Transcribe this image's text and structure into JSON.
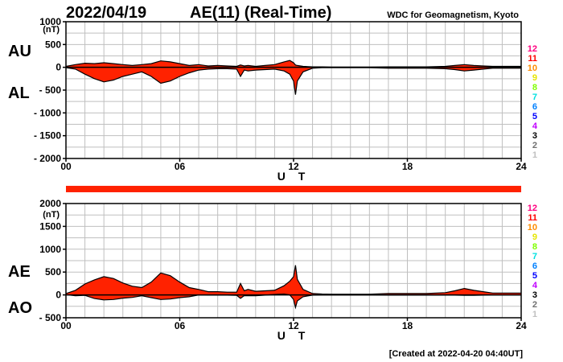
{
  "header": {
    "date": "2022/04/19",
    "title": "AE(11) (Real-Time)",
    "source": "WDC for Geomagnetism, Kyoto",
    "created": "[Created at 2022-04-20 04:40UT]"
  },
  "colors": {
    "fill": "#ff2200",
    "line": "#000000",
    "grid": "#bfbfbf",
    "availability_bar": "#ff2200"
  },
  "station_count": {
    "labels": [
      "12",
      "11",
      "10",
      "9",
      "8",
      "7",
      "6",
      "5",
      "4",
      "3",
      "2",
      "1"
    ],
    "colors": [
      "#ff0080",
      "#ff0000",
      "#ff8c00",
      "#e6e600",
      "#80ff00",
      "#00e0e0",
      "#0080ff",
      "#0000ff",
      "#c000ff",
      "#000000",
      "#707070",
      "#c0c0c0"
    ]
  },
  "chart_data": [
    {
      "type": "area",
      "name": "AU/AL",
      "series_labels": {
        "upper": "AU",
        "lower": "AL"
      },
      "y_unit": "(nT)",
      "ylim": [
        -2000,
        1000
      ],
      "yticks": [
        1000,
        500,
        0,
        -500,
        -1000,
        -1500,
        -2000
      ],
      "ytick_labels": [
        "1000",
        "500",
        "0",
        "- 500",
        "- 1000",
        "- 1500",
        "- 2000"
      ],
      "xlim": [
        0,
        24
      ],
      "xticks": [
        0,
        6,
        12,
        18,
        24
      ],
      "xtick_labels": [
        "00",
        "06",
        "12",
        "18",
        "24"
      ],
      "xlabel": "U T",
      "x": [
        0,
        0.5,
        1,
        1.5,
        2,
        2.5,
        3,
        3.5,
        4,
        4.5,
        5,
        5.5,
        6,
        6.5,
        7,
        7.5,
        8,
        8.5,
        9,
        9.2,
        9.4,
        9.6,
        10,
        10.5,
        11,
        11.5,
        11.8,
        12,
        12.1,
        12.2,
        12.5,
        13,
        13.5,
        14,
        15,
        16,
        17,
        18,
        19,
        20,
        20.5,
        21,
        21.5,
        22,
        22.5,
        23,
        23.5,
        24
      ],
      "upper": [
        20,
        60,
        90,
        80,
        100,
        80,
        60,
        40,
        60,
        80,
        140,
        120,
        80,
        40,
        60,
        30,
        40,
        30,
        20,
        50,
        30,
        40,
        20,
        40,
        60,
        120,
        150,
        100,
        50,
        40,
        20,
        10,
        10,
        5,
        5,
        5,
        10,
        10,
        10,
        20,
        40,
        60,
        40,
        30,
        20,
        20,
        20,
        20
      ],
      "lower": [
        -10,
        -40,
        -150,
        -250,
        -320,
        -280,
        -200,
        -150,
        -100,
        -200,
        -350,
        -300,
        -200,
        -120,
        -60,
        -40,
        -30,
        -30,
        -40,
        -200,
        -60,
        -80,
        -60,
        -50,
        -40,
        -80,
        -150,
        -300,
        -600,
        -300,
        -100,
        -20,
        -10,
        -10,
        -10,
        -10,
        -20,
        -20,
        -20,
        -30,
        -50,
        -80,
        -60,
        -40,
        -20,
        -20,
        -20,
        -20
      ]
    },
    {
      "type": "area",
      "name": "AE/AO",
      "series_labels": {
        "upper": "AE",
        "lower": "AO"
      },
      "y_unit": "(nT)",
      "ylim": [
        -500,
        2000
      ],
      "yticks": [
        2000,
        1500,
        1000,
        500,
        0,
        -500
      ],
      "ytick_labels": [
        "2000",
        "1500",
        "1000",
        "500",
        "0",
        "- 500"
      ],
      "xlim": [
        0,
        24
      ],
      "xticks": [
        0,
        6,
        12,
        18,
        24
      ],
      "xtick_labels": [
        "00",
        "06",
        "12",
        "18",
        "24"
      ],
      "xlabel": "U T",
      "x": [
        0,
        0.5,
        1,
        1.5,
        2,
        2.5,
        3,
        3.5,
        4,
        4.5,
        5,
        5.5,
        6,
        6.5,
        7,
        7.5,
        8,
        8.5,
        9,
        9.2,
        9.4,
        9.6,
        10,
        10.5,
        11,
        11.5,
        11.8,
        12,
        12.1,
        12.2,
        12.5,
        13,
        13.5,
        14,
        15,
        16,
        17,
        18,
        19,
        20,
        20.5,
        21,
        21.5,
        22,
        22.5,
        23,
        23.5,
        24
      ],
      "upper": [
        30,
        100,
        240,
        330,
        400,
        360,
        260,
        190,
        160,
        280,
        480,
        420,
        280,
        160,
        120,
        70,
        70,
        60,
        60,
        250,
        90,
        120,
        80,
        90,
        100,
        200,
        300,
        400,
        650,
        340,
        120,
        30,
        20,
        15,
        15,
        15,
        30,
        30,
        30,
        50,
        90,
        140,
        100,
        70,
        40,
        40,
        40,
        40
      ],
      "lower": [
        5,
        -20,
        -10,
        -80,
        -110,
        -100,
        -70,
        -55,
        -20,
        -60,
        -100,
        -90,
        -60,
        -40,
        0,
        -5,
        -5,
        -5,
        -10,
        -75,
        -15,
        -20,
        -20,
        -5,
        10,
        20,
        0,
        -100,
        -275,
        -130,
        -40,
        -5,
        0,
        -2,
        -2,
        -2,
        -5,
        -5,
        -5,
        -5,
        -5,
        -10,
        -10,
        -5,
        0,
        0,
        0,
        0
      ]
    }
  ]
}
